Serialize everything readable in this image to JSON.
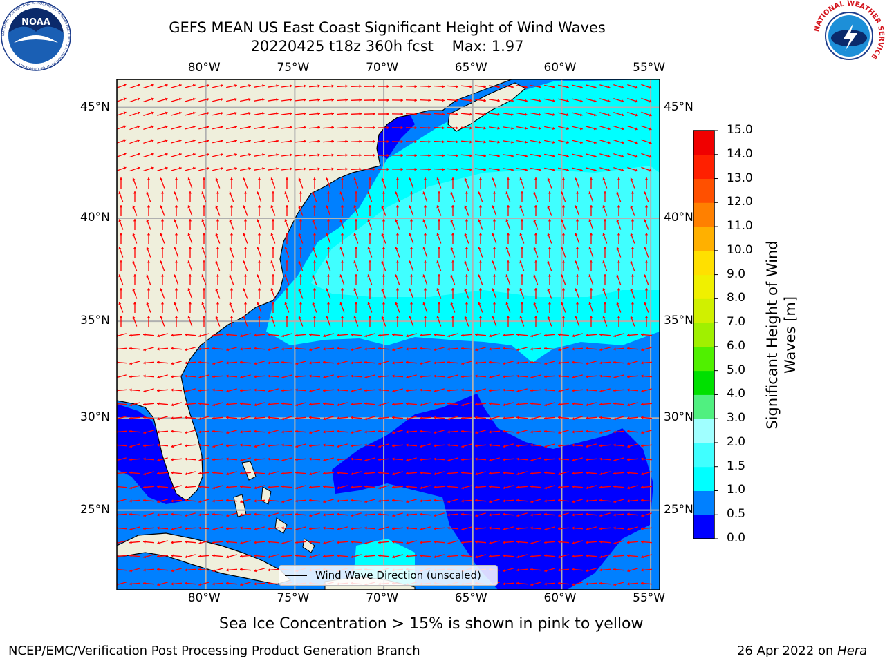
{
  "title": {
    "line1": "GEFS MEAN US East Coast Significant Height of Wind Waves",
    "line2": "20220425 t18z 360h fcst    Max: 1.97"
  },
  "axes": {
    "lon_labels": [
      "80°W",
      "75°W",
      "70°W",
      "65°W",
      "60°W",
      "55°W"
    ],
    "lat_labels": [
      "45°N",
      "40°N",
      "35°N",
      "30°N",
      "25°N"
    ]
  },
  "map": {
    "lon_range": [
      -85,
      -54.5
    ],
    "lat_range": [
      20.5,
      46.2
    ],
    "land_color": "#efefdc",
    "grid_color": "#b0b0b0",
    "arrow_color": "#ff0000"
  },
  "legend": {
    "label": "Wind Wave Direction (unscaled)"
  },
  "colorbar": {
    "title_line1": "Significant Height of Wind",
    "title_line2": "Waves [m]",
    "ticks": [
      "0.0",
      "0.5",
      "1.0",
      "1.5",
      "2.0",
      "3.0",
      "4.0",
      "5.0",
      "6.0",
      "7.0",
      "8.0",
      "9.0",
      "10.0",
      "11.0",
      "12.0",
      "13.0",
      "14.0",
      "15.0"
    ],
    "colors": [
      "#0000ff",
      "#0080ff",
      "#00ffff",
      "#40ffff",
      "#a0ffff",
      "#50f080",
      "#00e000",
      "#50f000",
      "#a0f000",
      "#d0f000",
      "#f0f000",
      "#ffe000",
      "#ffb000",
      "#ff8000",
      "#ff5000",
      "#ff2000",
      "#f00000"
    ]
  },
  "logos": {
    "noaa_text": "NOAA",
    "noaa_ring": "NATIONAL OCEANIC AND ATMOSPHERIC ADMINISTRATION · U.S. DEPARTMENT OF COMMERCE",
    "nws_ring": "NATIONAL WEATHER SERVICE"
  },
  "note": "Sea Ice Concentration > 15% is shown in pink to yellow",
  "footer": {
    "left": "NCEP/EMC/Verification Post Processing Product Generation Branch",
    "right_prefix": "26 Apr 2022 on ",
    "right_host": "Hera"
  }
}
